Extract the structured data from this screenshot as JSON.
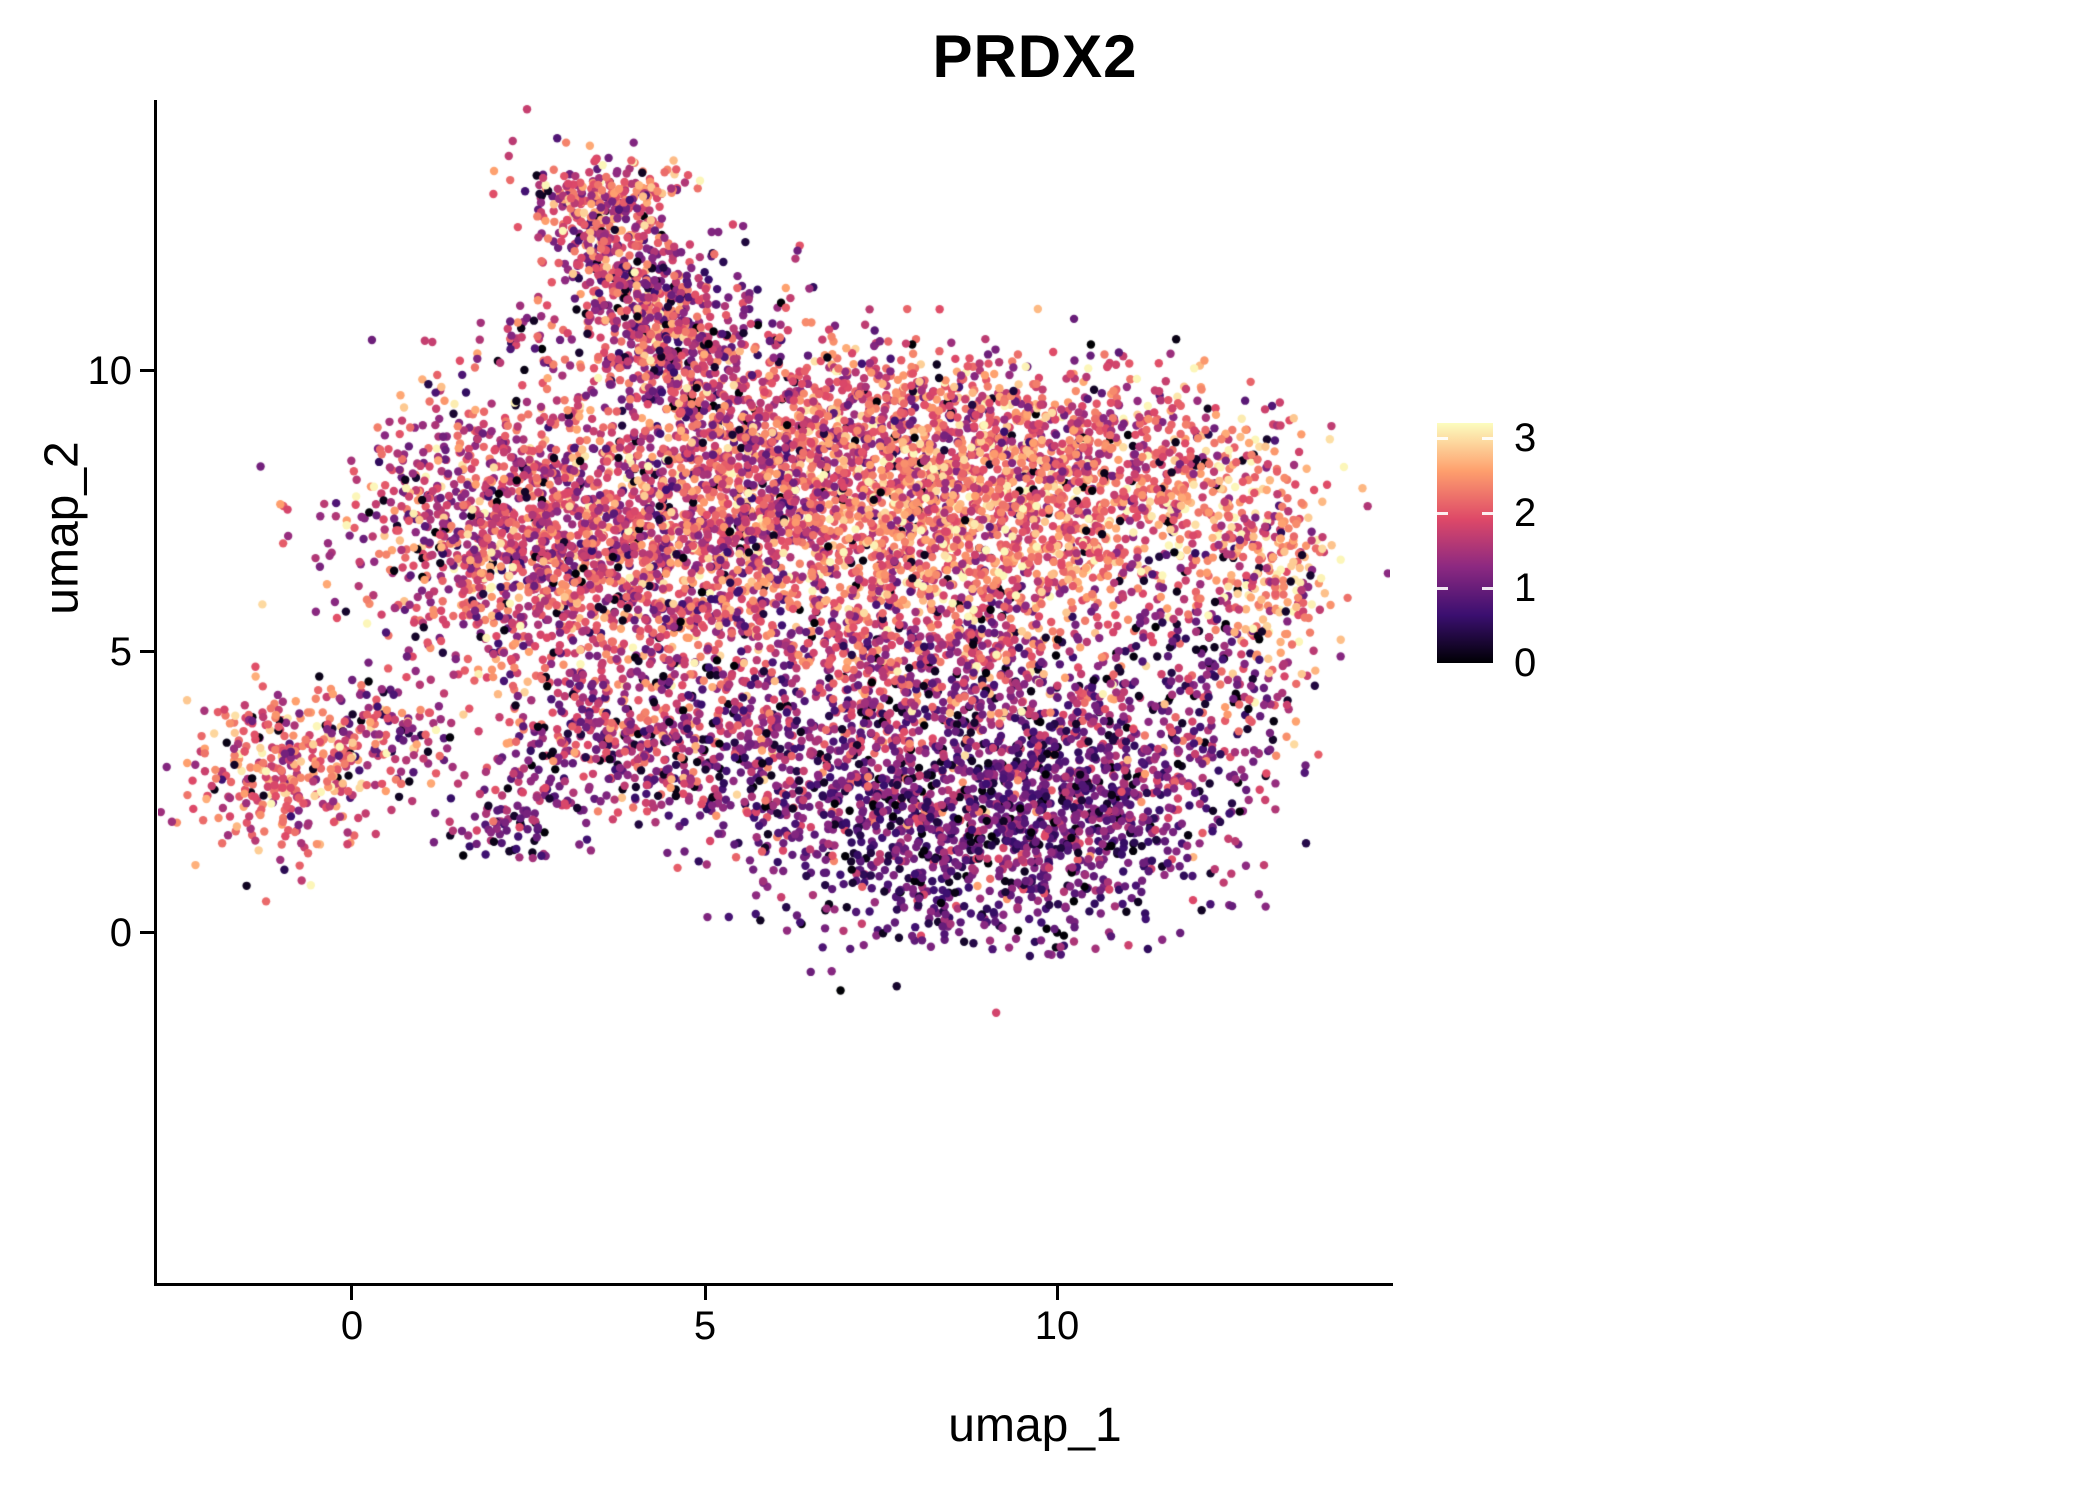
{
  "chart_data": {
    "type": "scatter",
    "title": "PRDX2",
    "xlabel": "umap_1",
    "ylabel": "umap_2",
    "x_ticks": [
      0,
      5,
      10
    ],
    "y_ticks": [
      0,
      5,
      10
    ],
    "xlim": [
      -2.8,
      14.7
    ],
    "ylim": [
      -6.2,
      14.8
    ],
    "grid": false,
    "point_radius_px": 4.2,
    "seed": 42,
    "colors": {
      "background": "#ffffff",
      "axis": "#000000",
      "text": "#000000"
    },
    "legend": {
      "type": "colorbar",
      "position": "right",
      "label_values": [
        3,
        2,
        1,
        0
      ],
      "vmin": 0,
      "vmax": 3.2
    },
    "colormap": {
      "name": "magma",
      "stops": [
        {
          "t": 0.0,
          "color": "#000004"
        },
        {
          "t": 0.2,
          "color": "#3b0f70"
        },
        {
          "t": 0.4,
          "color": "#8c2981"
        },
        {
          "t": 0.6,
          "color": "#de4968"
        },
        {
          "t": 0.8,
          "color": "#fe9f6d"
        },
        {
          "t": 1.0,
          "color": "#fcfdbf"
        }
      ]
    },
    "clusters": [
      {
        "name": "left-island",
        "cx": -0.9,
        "cy": 2.9,
        "sx": 0.8,
        "sy": 0.75,
        "n": 380,
        "vmean": 2.1,
        "vsd": 0.55,
        "zero_frac": 0.05,
        "rot": 0
      },
      {
        "name": "left-island-tail",
        "cx": 0.55,
        "cy": 3.55,
        "sx": 0.5,
        "sy": 0.45,
        "n": 80,
        "vmean": 1.5,
        "vsd": 0.6,
        "zero_frac": 0.06,
        "rot": 0
      },
      {
        "name": "small-low-left",
        "cx": 2.3,
        "cy": 2.0,
        "sx": 0.45,
        "sy": 0.4,
        "n": 90,
        "vmean": 1.1,
        "vsd": 0.5,
        "zero_frac": 0.08,
        "rot": 0
      },
      {
        "name": "main-left",
        "cx": 2.1,
        "cy": 7.2,
        "sx": 1.05,
        "sy": 1.25,
        "n": 950,
        "vmean": 1.8,
        "vsd": 0.62,
        "zero_frac": 0.05,
        "rot": 0
      },
      {
        "name": "main-center",
        "cx": 4.2,
        "cy": 6.3,
        "sx": 1.35,
        "sy": 1.35,
        "n": 1100,
        "vmean": 1.9,
        "vsd": 0.6,
        "zero_frac": 0.05,
        "rot": 0
      },
      {
        "name": "main-center-top",
        "cx": 5.6,
        "cy": 8.0,
        "sx": 1.3,
        "sy": 1.0,
        "n": 750,
        "vmean": 1.85,
        "vsd": 0.6,
        "zero_frac": 0.05,
        "rot": 0
      },
      {
        "name": "top-band",
        "cx": 7.0,
        "cy": 9.3,
        "sx": 1.7,
        "sy": 0.65,
        "n": 550,
        "vmean": 1.8,
        "vsd": 0.6,
        "zero_frac": 0.06,
        "rot": 0
      },
      {
        "name": "bright-right",
        "cx": 8.6,
        "cy": 7.4,
        "sx": 1.5,
        "sy": 1.15,
        "n": 1500,
        "vmean": 2.3,
        "vsd": 0.5,
        "zero_frac": 0.03,
        "rot": 0
      },
      {
        "name": "right-upper",
        "cx": 10.4,
        "cy": 8.5,
        "sx": 1.2,
        "sy": 0.8,
        "n": 500,
        "vmean": 2.0,
        "vsd": 0.6,
        "zero_frac": 0.05,
        "rot": 0
      },
      {
        "name": "right-edge-upper",
        "cx": 12.3,
        "cy": 7.6,
        "sx": 0.75,
        "sy": 0.75,
        "n": 200,
        "vmean": 2.1,
        "vsd": 0.6,
        "zero_frac": 0.05,
        "rot": 0
      },
      {
        "name": "far-right-edge",
        "cx": 13.1,
        "cy": 6.3,
        "sx": 0.4,
        "sy": 1.0,
        "n": 170,
        "vmean": 2.5,
        "vsd": 0.5,
        "zero_frac": 0.03,
        "rot": 0
      },
      {
        "name": "right-hole-sparse",
        "cx": 11.5,
        "cy": 5.9,
        "sx": 0.9,
        "sy": 0.9,
        "n": 110,
        "vmean": 1.4,
        "vsd": 0.7,
        "zero_frac": 0.08,
        "rot": 0
      },
      {
        "name": "right-low-arc",
        "cx": 12.4,
        "cy": 4.4,
        "sx": 0.6,
        "sy": 0.9,
        "n": 150,
        "vmean": 1.3,
        "vsd": 0.6,
        "zero_frac": 0.08,
        "rot": 0
      },
      {
        "name": "bottom-right-tail",
        "cx": 10.9,
        "cy": 2.9,
        "sx": 0.9,
        "sy": 0.9,
        "n": 300,
        "vmean": 1.05,
        "vsd": 0.55,
        "zero_frac": 0.08,
        "rot": 0
      },
      {
        "name": "bottom-right-dark",
        "cx": 8.9,
        "cy": 1.9,
        "sx": 1.6,
        "sy": 1.0,
        "n": 1250,
        "vmean": 1.0,
        "vsd": 0.5,
        "zero_frac": 0.07,
        "rot": 0
      },
      {
        "name": "bottom-mid",
        "cx": 6.2,
        "cy": 3.1,
        "sx": 1.4,
        "sy": 0.85,
        "n": 480,
        "vmean": 1.35,
        "vsd": 0.6,
        "zero_frac": 0.06,
        "rot": 0
      },
      {
        "name": "lower-left-arc",
        "cx": 3.7,
        "cy": 3.3,
        "sx": 0.95,
        "sy": 0.6,
        "n": 280,
        "vmean": 1.5,
        "vsd": 0.6,
        "zero_frac": 0.06,
        "rot": 0
      },
      {
        "name": "mid-gap",
        "cx": 6.8,
        "cy": 5.2,
        "sx": 1.2,
        "sy": 0.8,
        "n": 260,
        "vmean": 1.6,
        "vsd": 0.65,
        "zero_frac": 0.06,
        "rot": 0
      },
      {
        "name": "right-mid-low",
        "cx": 8.8,
        "cy": 4.6,
        "sx": 1.3,
        "sy": 0.8,
        "n": 450,
        "vmean": 1.6,
        "vsd": 0.7,
        "zero_frac": 0.06,
        "rot": 0
      },
      {
        "name": "top-arm",
        "cx": 3.85,
        "cy": 11.7,
        "sx": 1.05,
        "sy": 0.42,
        "n": 520,
        "vmean": 1.7,
        "vsd": 0.65,
        "zero_frac": 0.06,
        "rot": 117
      },
      {
        "name": "top-arm-tip",
        "cx": 3.6,
        "cy": 13.1,
        "sx": 0.55,
        "sy": 0.3,
        "n": 160,
        "vmean": 2.0,
        "vsd": 0.6,
        "zero_frac": 0.04,
        "rot": 10
      },
      {
        "name": "top-arm-join",
        "cx": 4.6,
        "cy": 10.3,
        "sx": 0.6,
        "sy": 0.5,
        "n": 200,
        "vmean": 1.7,
        "vsd": 0.6,
        "zero_frac": 0.05,
        "rot": 0
      },
      {
        "name": "arm-left-sparse",
        "cx": 2.6,
        "cy": 10.6,
        "sx": 0.45,
        "sy": 0.45,
        "n": 40,
        "vmean": 1.5,
        "vsd": 0.6,
        "zero_frac": 0.1,
        "rot": 0
      },
      {
        "name": "top-arm-right-sparse",
        "cx": 5.2,
        "cy": 11.3,
        "sx": 0.6,
        "sy": 0.8,
        "n": 90,
        "vmean": 1.4,
        "vsd": 0.7,
        "zero_frac": 0.08,
        "rot": 0
      }
    ]
  }
}
